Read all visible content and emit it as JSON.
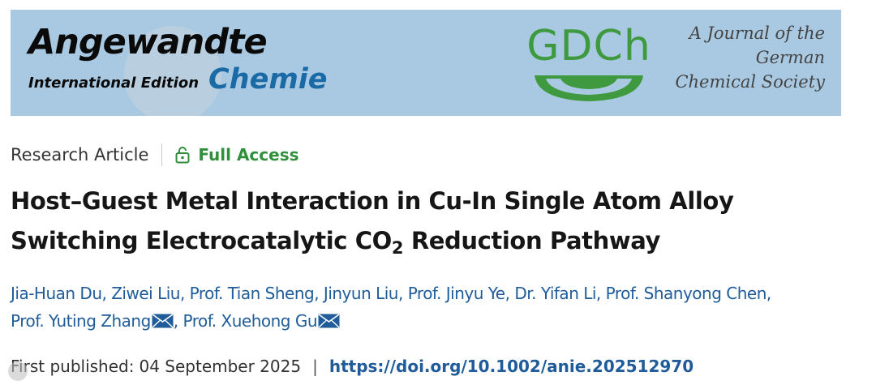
{
  "banner": {
    "brand_main": "Angewandte",
    "brand_sub": "International Edition",
    "brand_chemie": "Chemie",
    "gdch": "GDCh",
    "journal_line1": "A Journal of the",
    "journal_line2": "German",
    "journal_line3": "Chemical Society"
  },
  "meta": {
    "article_type": "Research Article",
    "access": "Full Access"
  },
  "title": {
    "line1": "Host–Guest Metal Interaction in Cu-In Single Atom Alloy",
    "line2_pre": "Switching Electrocatalytic CO",
    "line2_sub": "2",
    "line2_post": " Reduction Pathway"
  },
  "authors": [
    "Jia-Huan Du",
    "Ziwei Liu",
    "Prof. Tian Sheng",
    "Jinyun Liu",
    "Prof. Jinyu Ye",
    "Dr. Yifan Li",
    "Prof. Shanyong Chen",
    "Prof. Yuting Zhang",
    "Prof. Xuehong Gu"
  ],
  "publication": {
    "label": "First published:",
    "date": "04 September 2025",
    "separator": "|",
    "doi": "https://doi.org/10.1002/anie.202512970"
  },
  "colors": {
    "banner_bg": "#a9c9e2",
    "gdch_green": "#3f9a3f",
    "access_green": "#2f8f3b",
    "link_blue": "#1f5c99"
  }
}
